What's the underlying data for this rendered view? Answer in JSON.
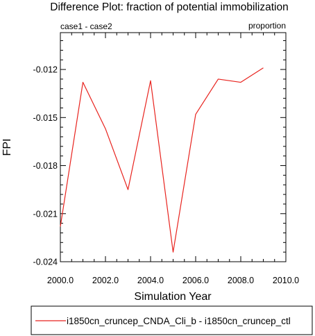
{
  "chart_data": {
    "type": "line",
    "title": "Difference Plot: fraction of potential immobilization",
    "subtitle_left": "case1 - case2",
    "subtitle_right": "proportion",
    "xlabel": "Simulation Year",
    "ylabel": "FPI",
    "xlim": [
      2000,
      2010
    ],
    "ylim": [
      -0.024,
      -0.0097
    ],
    "x_ticks": [
      2000,
      2002,
      2004,
      2006,
      2008,
      2010
    ],
    "x_tick_labels": [
      "2000.0",
      "2002.0",
      "2004.0",
      "2006.0",
      "2008.0",
      "2010.0"
    ],
    "y_ticks": [
      -0.024,
      -0.021,
      -0.018,
      -0.015,
      -0.012
    ],
    "y_tick_labels": [
      "-0.024",
      "-0.021",
      "-0.018",
      "-0.015",
      "-0.012"
    ],
    "grid": false,
    "legend_position": "bottom",
    "series": [
      {
        "name": "i1850cn_cruncep_CNDA_Cli_b - i1850cn_cruncep_ctl",
        "color": "#e8221d",
        "x": [
          2000,
          2001,
          2002,
          2003,
          2004,
          2005,
          2006,
          2007,
          2008,
          2009
        ],
        "y": [
          -0.0218,
          -0.0128,
          -0.0157,
          -0.0195,
          -0.0127,
          -0.0234,
          -0.0148,
          -0.0126,
          -0.0128,
          -0.0119
        ]
      }
    ]
  }
}
